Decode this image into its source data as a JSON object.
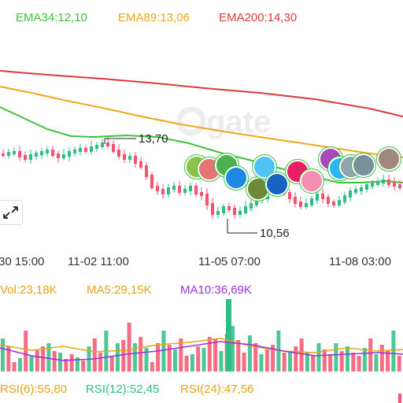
{
  "colors": {
    "up": "#2ebd85",
    "down": "#f5526c",
    "ema34": "#3dc13c",
    "ema89": "#f0a51a",
    "ema200": "#d93b3b",
    "vol": "#e8a317",
    "ma5": "#e8a317",
    "ma10": "#9b30d9",
    "rsi6": "#e8a317",
    "rsi12": "#2ebd85",
    "rsi24": "#e8a317"
  },
  "legend_top": {
    "ema34": "EMA34:12,10",
    "ema89": "EMA89:13,06",
    "ema200": "EMA200:14,30"
  },
  "legend_vol": {
    "vol": "Vol:23,18K",
    "ma5": "MA5:29,15K",
    "ma10": "MA10:36,69K"
  },
  "legend_rsi": {
    "rsi6": "RSI(6):55,80",
    "rsi12": "RSI(12):52,45",
    "rsi24": "RSI(24):47,56"
  },
  "price_marks": {
    "high": "13,70",
    "low": "10,56"
  },
  "time_axis": [
    "30 15:00",
    "11-02 11:00",
    "11-05 07:00",
    "11-08 03:00"
  ],
  "watermark": "gate",
  "icons": {
    "expand": "expand-icon"
  }
}
